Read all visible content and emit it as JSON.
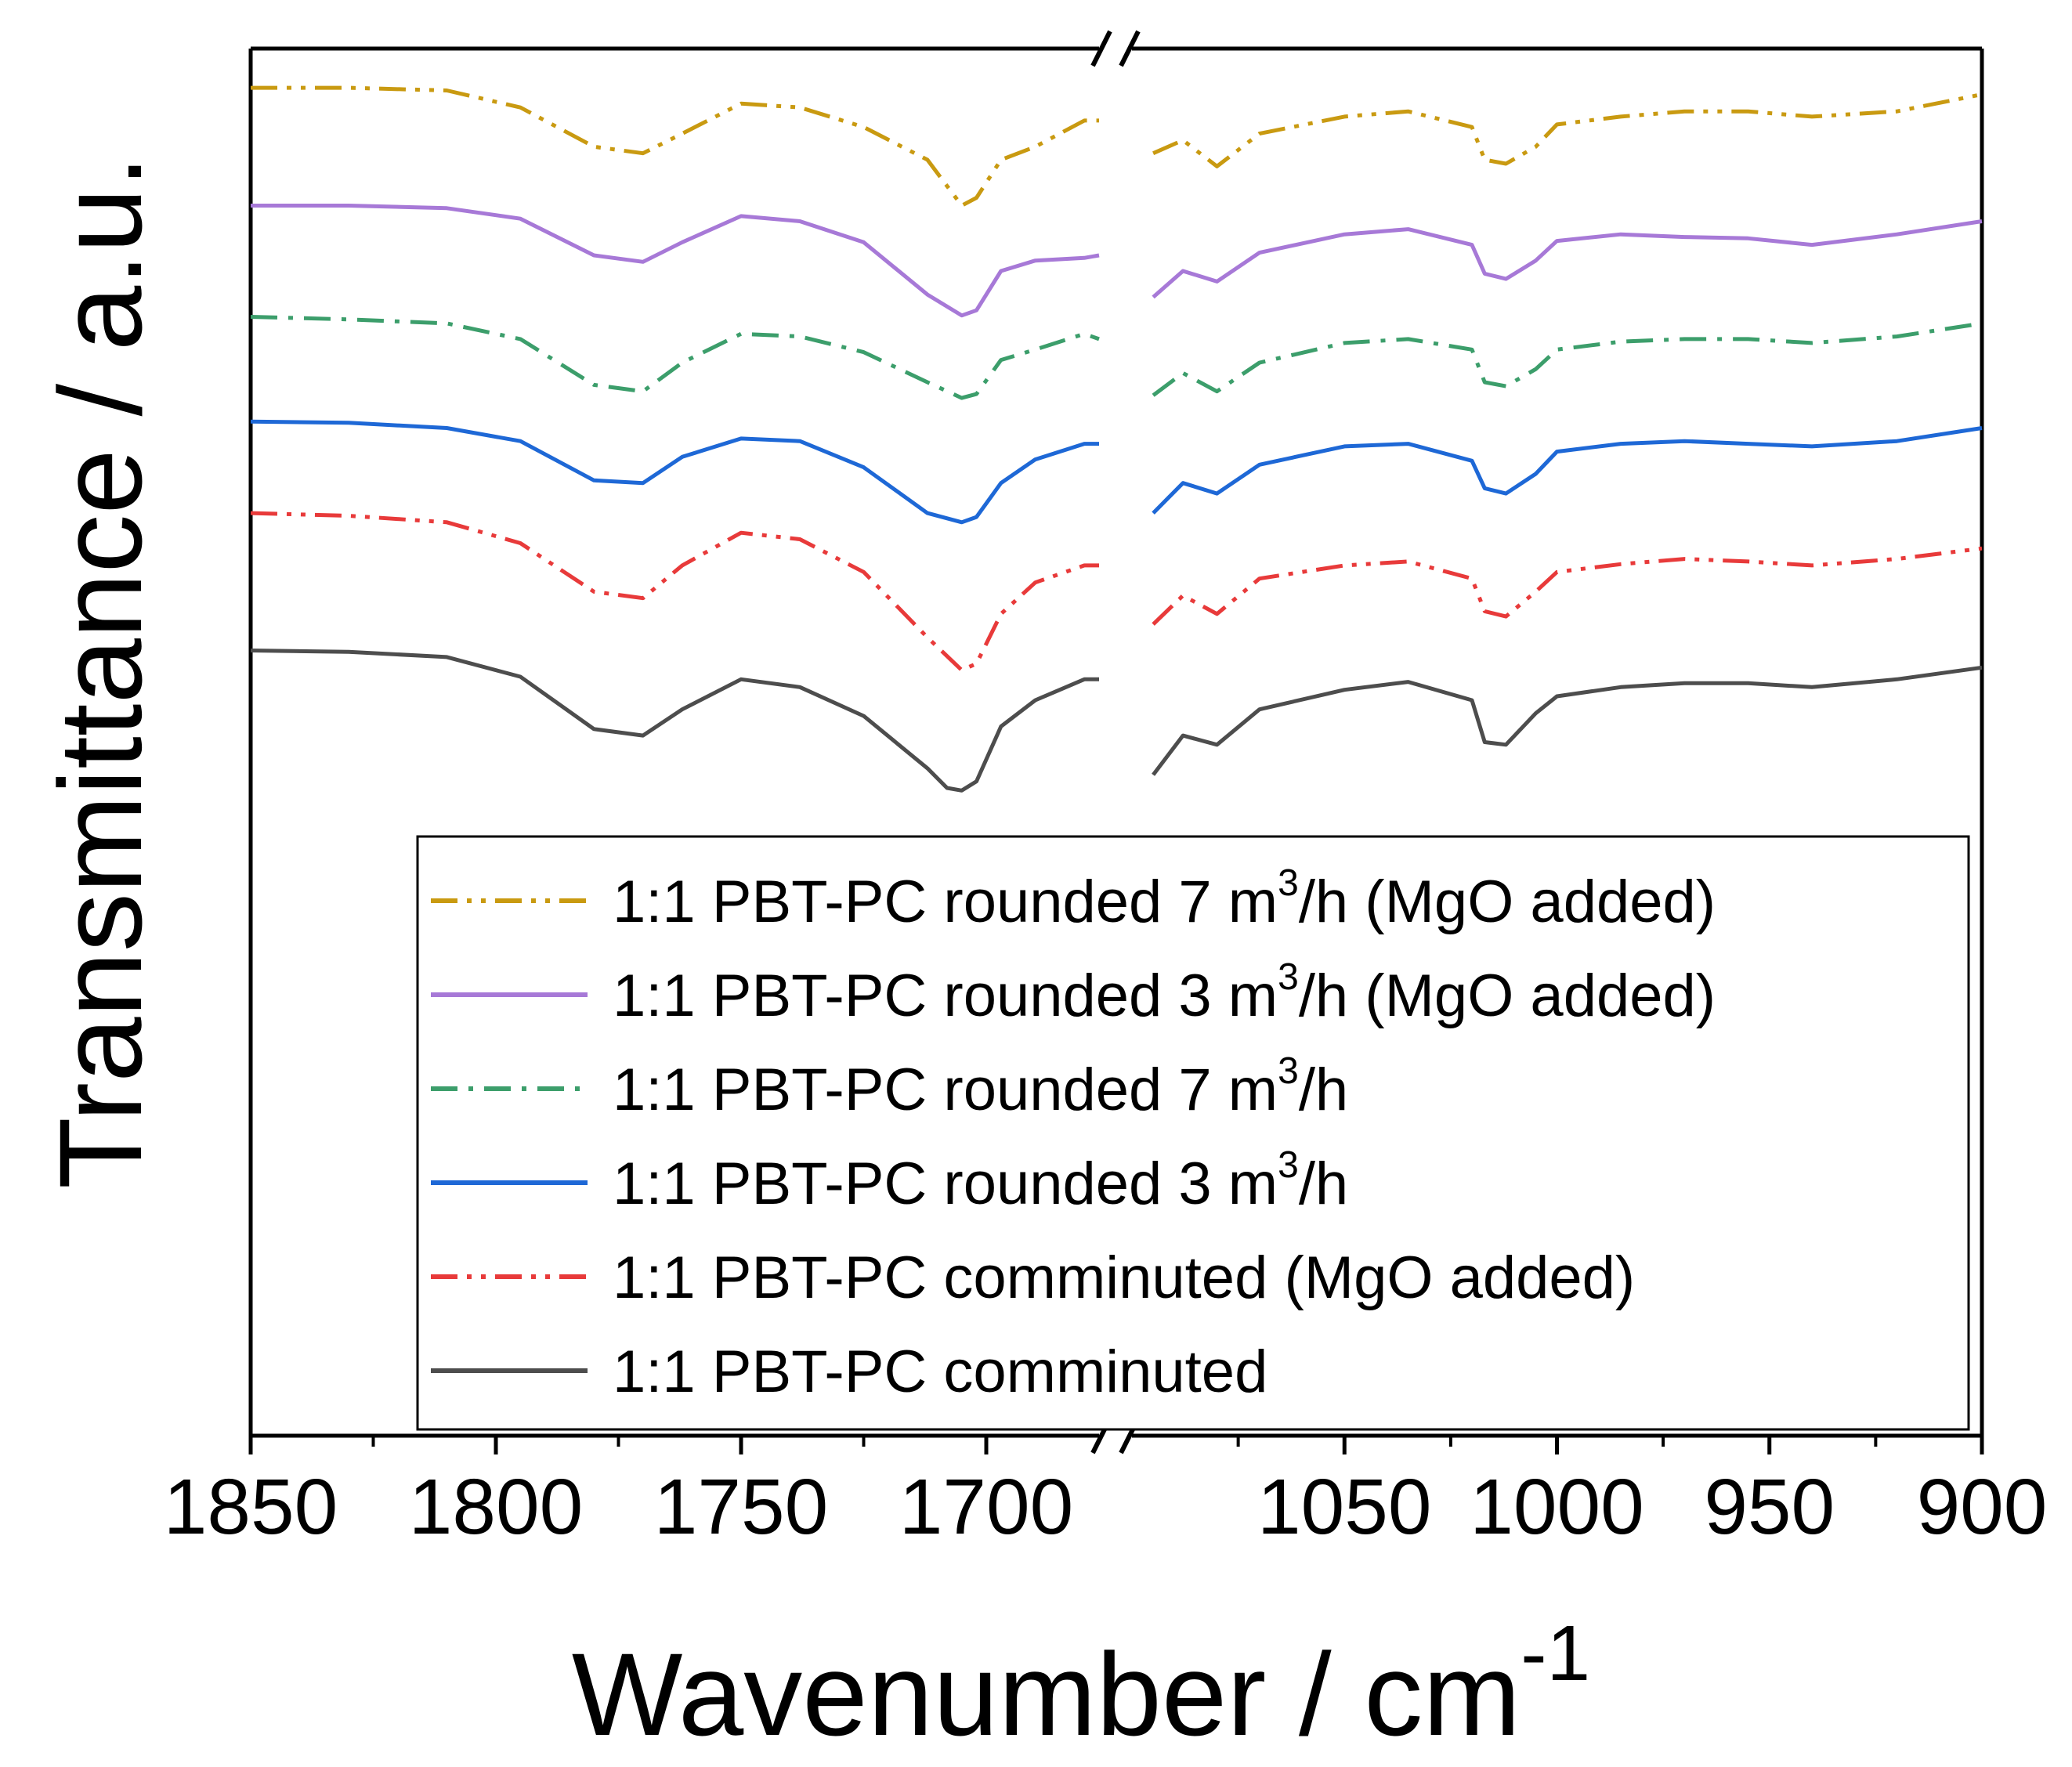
{
  "chart_data": {
    "type": "line",
    "xlabel": "Wavenumber / cm",
    "xlabel_superscript": "-1",
    "ylabel": "Transmittance / a.u.",
    "x_axis_break": true,
    "x_segments": [
      {
        "xlim": [
          1850,
          1677
        ],
        "ticks": [
          1850,
          1800,
          1750,
          1700
        ],
        "minor_ticks": [
          1825,
          1775,
          1725
        ]
      },
      {
        "xlim": [
          1100,
          900
        ],
        "ticks": [
          1050,
          1000,
          950,
          900
        ],
        "minor_ticks": [
          1075,
          1025,
          975,
          925
        ]
      }
    ],
    "ylim": [
      0,
      10.6
    ],
    "y_ticks_labeled": false,
    "legend_position": "lower-right",
    "series": [
      {
        "name": "1:1 PBT-PC rounded 7 m³/h (MgO added)",
        "legend_pre": "1:1 PBT-PC rounded 7 m",
        "legend_sup": "3",
        "legend_post": "/h (MgO added)",
        "color": "#C99A11",
        "dash": "dashdotdot",
        "points_a": [
          [
            1850,
            10.3
          ],
          [
            1830,
            10.3
          ],
          [
            1810,
            10.28
          ],
          [
            1795,
            10.15
          ],
          [
            1780,
            9.85
          ],
          [
            1770,
            9.8
          ],
          [
            1762,
            9.95
          ],
          [
            1750,
            10.18
          ],
          [
            1738,
            10.15
          ],
          [
            1725,
            10.0
          ],
          [
            1712,
            9.75
          ],
          [
            1705,
            9.4
          ],
          [
            1702,
            9.46
          ],
          [
            1697,
            9.75
          ],
          [
            1690,
            9.85
          ],
          [
            1680,
            10.05
          ],
          [
            1677,
            10.05
          ]
        ],
        "points_b": [
          [
            1095,
            9.8
          ],
          [
            1088,
            9.9
          ],
          [
            1080,
            9.7
          ],
          [
            1070,
            9.95
          ],
          [
            1050,
            10.08
          ],
          [
            1035,
            10.12
          ],
          [
            1020,
            10.0
          ],
          [
            1017,
            9.75
          ],
          [
            1012,
            9.72
          ],
          [
            1005,
            9.85
          ],
          [
            1000,
            10.02
          ],
          [
            985,
            10.08
          ],
          [
            970,
            10.12
          ],
          [
            955,
            10.12
          ],
          [
            940,
            10.08
          ],
          [
            920,
            10.12
          ],
          [
            900,
            10.25
          ]
        ]
      },
      {
        "name": "1:1 PBT-PC rounded 3 m³/h (MgO added)",
        "legend_pre": "1:1 PBT-PC rounded 3 m",
        "legend_sup": "3",
        "legend_post": "/h (MgO added)",
        "color": "#A779D7",
        "dash": "solid",
        "points_a": [
          [
            1850,
            9.4
          ],
          [
            1830,
            9.4
          ],
          [
            1810,
            9.38
          ],
          [
            1795,
            9.3
          ],
          [
            1780,
            9.02
          ],
          [
            1770,
            8.97
          ],
          [
            1762,
            9.12
          ],
          [
            1750,
            9.32
          ],
          [
            1738,
            9.28
          ],
          [
            1725,
            9.12
          ],
          [
            1712,
            8.72
          ],
          [
            1705,
            8.56
          ],
          [
            1702,
            8.6
          ],
          [
            1697,
            8.9
          ],
          [
            1690,
            8.98
          ],
          [
            1680,
            9.0
          ],
          [
            1677,
            9.02
          ]
        ],
        "points_b": [
          [
            1095,
            8.7
          ],
          [
            1088,
            8.9
          ],
          [
            1080,
            8.82
          ],
          [
            1070,
            9.04
          ],
          [
            1050,
            9.18
          ],
          [
            1035,
            9.22
          ],
          [
            1020,
            9.1
          ],
          [
            1017,
            8.88
          ],
          [
            1012,
            8.84
          ],
          [
            1005,
            8.98
          ],
          [
            1000,
            9.13
          ],
          [
            985,
            9.18
          ],
          [
            970,
            9.16
          ],
          [
            955,
            9.15
          ],
          [
            940,
            9.1
          ],
          [
            920,
            9.18
          ],
          [
            900,
            9.28
          ]
        ]
      },
      {
        "name": "1:1 PBT-PC rounded 7 m³/h",
        "legend_pre": "1:1 PBT-PC rounded 7 m",
        "legend_sup": "3",
        "legend_post": "/h",
        "color": "#3C9E6B",
        "dash": "dashdot",
        "points_a": [
          [
            1850,
            8.55
          ],
          [
            1830,
            8.53
          ],
          [
            1810,
            8.5
          ],
          [
            1795,
            8.38
          ],
          [
            1780,
            8.03
          ],
          [
            1770,
            7.98
          ],
          [
            1762,
            8.2
          ],
          [
            1750,
            8.42
          ],
          [
            1738,
            8.4
          ],
          [
            1725,
            8.28
          ],
          [
            1712,
            8.05
          ],
          [
            1705,
            7.93
          ],
          [
            1702,
            7.96
          ],
          [
            1697,
            8.22
          ],
          [
            1690,
            8.3
          ],
          [
            1680,
            8.42
          ],
          [
            1677,
            8.38
          ]
        ],
        "points_b": [
          [
            1095,
            7.95
          ],
          [
            1088,
            8.12
          ],
          [
            1080,
            7.98
          ],
          [
            1070,
            8.2
          ],
          [
            1050,
            8.35
          ],
          [
            1035,
            8.38
          ],
          [
            1020,
            8.3
          ],
          [
            1017,
            8.05
          ],
          [
            1012,
            8.02
          ],
          [
            1005,
            8.15
          ],
          [
            1000,
            8.3
          ],
          [
            985,
            8.36
          ],
          [
            970,
            8.38
          ],
          [
            955,
            8.38
          ],
          [
            940,
            8.35
          ],
          [
            920,
            8.4
          ],
          [
            900,
            8.5
          ]
        ]
      },
      {
        "name": "1:1 PBT-PC rounded 3 m³/h",
        "legend_pre": "1:1 PBT-PC rounded 3 m",
        "legend_sup": "3",
        "legend_post": "/h",
        "color": "#1E68D6",
        "dash": "solid",
        "points_a": [
          [
            1850,
            7.75
          ],
          [
            1830,
            7.74
          ],
          [
            1810,
            7.7
          ],
          [
            1795,
            7.6
          ],
          [
            1780,
            7.3
          ],
          [
            1770,
            7.28
          ],
          [
            1762,
            7.48
          ],
          [
            1750,
            7.62
          ],
          [
            1738,
            7.6
          ],
          [
            1725,
            7.4
          ],
          [
            1712,
            7.05
          ],
          [
            1705,
            6.98
          ],
          [
            1702,
            7.02
          ],
          [
            1697,
            7.28
          ],
          [
            1690,
            7.46
          ],
          [
            1680,
            7.58
          ],
          [
            1677,
            7.58
          ]
        ],
        "points_b": [
          [
            1095,
            7.05
          ],
          [
            1088,
            7.28
          ],
          [
            1080,
            7.2
          ],
          [
            1070,
            7.42
          ],
          [
            1050,
            7.56
          ],
          [
            1035,
            7.58
          ],
          [
            1020,
            7.45
          ],
          [
            1017,
            7.24
          ],
          [
            1012,
            7.2
          ],
          [
            1005,
            7.35
          ],
          [
            1000,
            7.52
          ],
          [
            985,
            7.58
          ],
          [
            970,
            7.6
          ],
          [
            955,
            7.58
          ],
          [
            940,
            7.56
          ],
          [
            920,
            7.6
          ],
          [
            900,
            7.7
          ]
        ]
      },
      {
        "name": "1:1 PBT-PC comminuted (MgO added)",
        "legend_pre": "1:1 PBT-PC comminuted (MgO added)",
        "legend_sup": "",
        "legend_post": "",
        "color": "#E83A3A",
        "dash": "dashdotdot",
        "points_a": [
          [
            1850,
            7.05
          ],
          [
            1830,
            7.03
          ],
          [
            1810,
            6.98
          ],
          [
            1795,
            6.82
          ],
          [
            1780,
            6.45
          ],
          [
            1770,
            6.4
          ],
          [
            1762,
            6.65
          ],
          [
            1750,
            6.9
          ],
          [
            1738,
            6.85
          ],
          [
            1725,
            6.6
          ],
          [
            1712,
            6.1
          ],
          [
            1705,
            5.85
          ],
          [
            1702,
            5.9
          ],
          [
            1697,
            6.28
          ],
          [
            1690,
            6.52
          ],
          [
            1680,
            6.65
          ],
          [
            1677,
            6.65
          ]
        ],
        "points_b": [
          [
            1095,
            6.2
          ],
          [
            1088,
            6.42
          ],
          [
            1080,
            6.28
          ],
          [
            1070,
            6.55
          ],
          [
            1050,
            6.65
          ],
          [
            1035,
            6.68
          ],
          [
            1020,
            6.55
          ],
          [
            1017,
            6.3
          ],
          [
            1012,
            6.26
          ],
          [
            1005,
            6.45
          ],
          [
            1000,
            6.6
          ],
          [
            985,
            6.66
          ],
          [
            970,
            6.7
          ],
          [
            955,
            6.68
          ],
          [
            940,
            6.65
          ],
          [
            920,
            6.7
          ],
          [
            900,
            6.78
          ]
        ]
      },
      {
        "name": "1:1 PBT-PC comminuted",
        "legend_pre": "1:1 PBT-PC comminuted",
        "legend_sup": "",
        "legend_post": "",
        "color": "#4D4D4D",
        "dash": "solid",
        "points_a": [
          [
            1850,
            6.0
          ],
          [
            1830,
            5.99
          ],
          [
            1810,
            5.95
          ],
          [
            1795,
            5.8
          ],
          [
            1780,
            5.4
          ],
          [
            1770,
            5.35
          ],
          [
            1762,
            5.55
          ],
          [
            1750,
            5.78
          ],
          [
            1738,
            5.72
          ],
          [
            1725,
            5.5
          ],
          [
            1712,
            5.1
          ],
          [
            1708,
            4.95
          ],
          [
            1705,
            4.93
          ],
          [
            1702,
            5.0
          ],
          [
            1697,
            5.42
          ],
          [
            1690,
            5.62
          ],
          [
            1680,
            5.78
          ],
          [
            1677,
            5.78
          ]
        ],
        "points_b": [
          [
            1095,
            5.05
          ],
          [
            1088,
            5.35
          ],
          [
            1080,
            5.28
          ],
          [
            1070,
            5.55
          ],
          [
            1050,
            5.7
          ],
          [
            1035,
            5.76
          ],
          [
            1020,
            5.62
          ],
          [
            1017,
            5.3
          ],
          [
            1012,
            5.28
          ],
          [
            1005,
            5.52
          ],
          [
            1000,
            5.65
          ],
          [
            985,
            5.72
          ],
          [
            970,
            5.75
          ],
          [
            955,
            5.75
          ],
          [
            940,
            5.72
          ],
          [
            920,
            5.78
          ],
          [
            900,
            5.87
          ]
        ]
      }
    ]
  }
}
